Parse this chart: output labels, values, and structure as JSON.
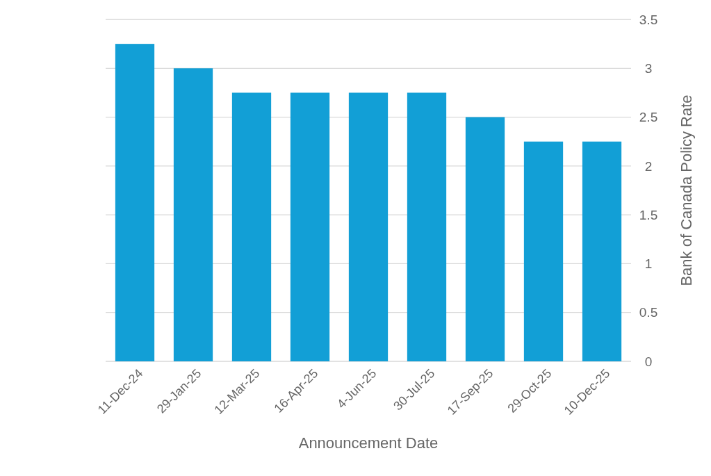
{
  "chart_data": {
    "type": "bar",
    "xlabel": "Announcement Date",
    "ylabel": "Bank of Canada Policy Rate",
    "categories": [
      "11-Dec-24",
      "29-Jan-25",
      "12-Mar-25",
      "16-Apr-25",
      "4-Jun-25",
      "30-Jul-25",
      "17-Sep-25",
      "29-Oct-25",
      "10-Dec-25"
    ],
    "values": [
      3.25,
      3,
      2.75,
      2.75,
      2.75,
      2.75,
      2.5,
      2.25,
      2.25
    ],
    "color": "#129fd6",
    "ylim": [
      0,
      3.5
    ],
    "yticks": [
      0,
      0.5,
      1,
      1.5,
      2,
      2.5,
      3,
      3.5
    ],
    "grid": "y"
  }
}
